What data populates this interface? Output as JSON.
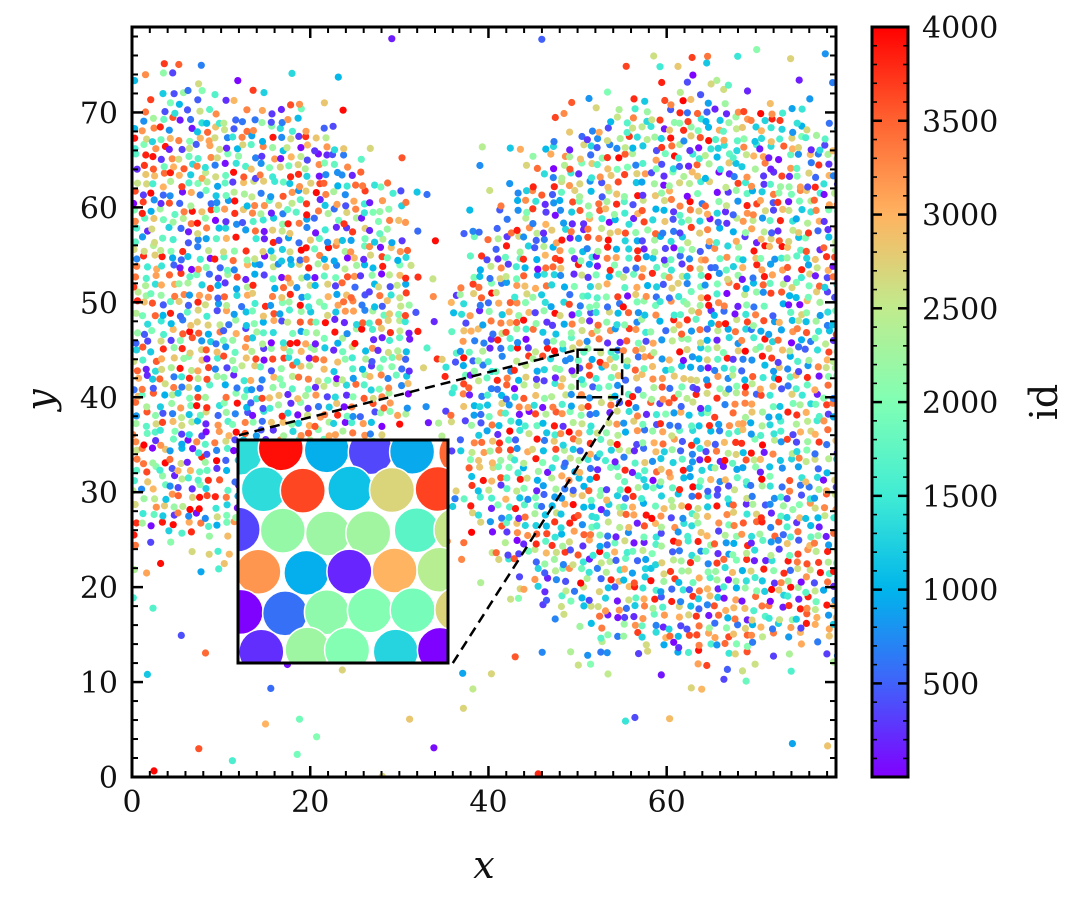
{
  "chart_data": {
    "type": "scatter",
    "title": "",
    "xlabel": "x",
    "ylabel": "y",
    "xlim": [
      0,
      79
    ],
    "ylim": [
      0,
      79
    ],
    "xticks": [
      0,
      20,
      40,
      60
    ],
    "yticks": [
      0,
      10,
      20,
      30,
      40,
      50,
      60,
      70
    ],
    "grid": false,
    "ticks_direction": "in",
    "color_by": "id",
    "colormap": "rainbow",
    "colormap_stops": [
      "#8000ff",
      "#4062fa",
      "#00b5eb",
      "#40ecd4",
      "#80ffb4",
      "#c0eb8d",
      "#ffb360",
      "#ff6230",
      "#ff0000"
    ],
    "colorbar": {
      "label": "id",
      "range": [
        1,
        4000
      ],
      "ticks": [
        "500",
        "1000",
        "1500",
        "2000",
        "2500",
        "3000",
        "3500",
        "4000"
      ]
    },
    "particle_count_approx": 4000,
    "clusters": [
      {
        "name": "left",
        "center": [
          9,
          48
        ],
        "radius_approx": 22
      },
      {
        "name": "right",
        "center": [
          65,
          42
        ],
        "radius_approx": 28
      }
    ],
    "zoom_region": {
      "x": [
        50,
        55
      ],
      "y": [
        40,
        45
      ]
    },
    "inset": {
      "x_span": [
        12,
        36
      ],
      "y_span": [
        12,
        36
      ],
      "shows": "magnified region 50 ≤ x ≤ 55, 40 ≤ y ≤ 45"
    }
  }
}
